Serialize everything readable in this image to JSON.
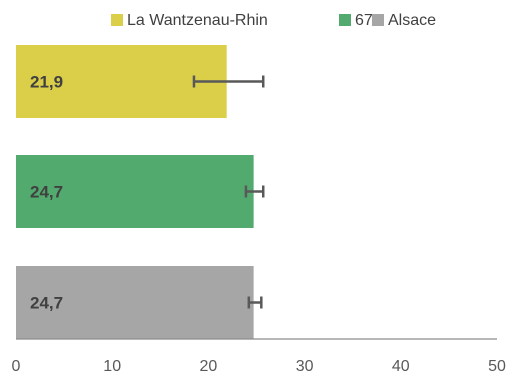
{
  "chart_data": {
    "type": "bar",
    "orientation": "horizontal",
    "categories": [
      "La Wantzenau-Rhin",
      "67",
      "Alsace"
    ],
    "values": [
      21.9,
      24.7,
      24.7
    ],
    "data_labels": [
      "21,9",
      "24,7",
      "24,7"
    ],
    "error_bars": [
      {
        "low": 18.5,
        "high": 25.7
      },
      {
        "low": 23.9,
        "high": 25.7
      },
      {
        "low": 24.2,
        "high": 25.5
      }
    ],
    "colors": [
      "#DBCF4A",
      "#52AA6E",
      "#A6A6A6"
    ],
    "legend": {
      "position": "top",
      "items": [
        {
          "label": "La Wantzenau-Rhin",
          "color": "#DBCF4A"
        },
        {
          "label": "67",
          "color": "#52AA6E"
        },
        {
          "label": "Alsace",
          "color": "#A6A6A6"
        }
      ]
    },
    "xlim": [
      0,
      50
    ],
    "xticks": [
      0,
      10,
      20,
      30,
      40,
      50
    ],
    "xtick_labels": [
      "0",
      "10",
      "20",
      "30",
      "40",
      "50"
    ],
    "title": "",
    "xlabel": "",
    "ylabel": "",
    "grid": false
  }
}
